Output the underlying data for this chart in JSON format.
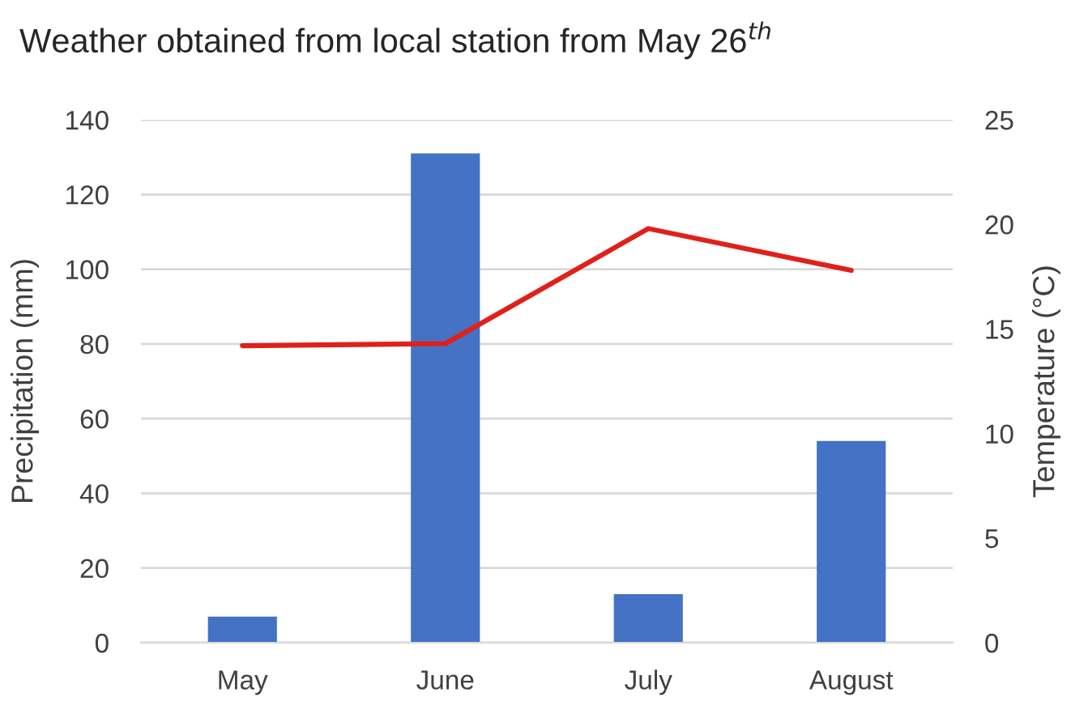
{
  "chart_data": {
    "type": "bar",
    "title": "Weather obtained from local station from May 26$^{th}$",
    "ylabel": "Precipitation (mm)",
    "y2label": "Temperature (°C)",
    "categories": [
      "May",
      "June",
      "July",
      "August"
    ],
    "series": [
      {
        "color": "#4472c4",
        "values": [
          7,
          131,
          13,
          54
        ]
      },
      {
        "type": "line",
        "axis": "y2",
        "color": "#e0201b",
        "values": [
          14.2,
          14.3,
          19.8,
          17.8
        ]
      }
    ],
    "ylim": [
      0,
      140
    ],
    "yticks": [
      0,
      20,
      40,
      60,
      80,
      100,
      120,
      140
    ],
    "y2lim": [
      0,
      25
    ],
    "y2ticks": [
      0,
      5,
      10,
      15,
      20,
      25
    ],
    "grid": "y"
  }
}
